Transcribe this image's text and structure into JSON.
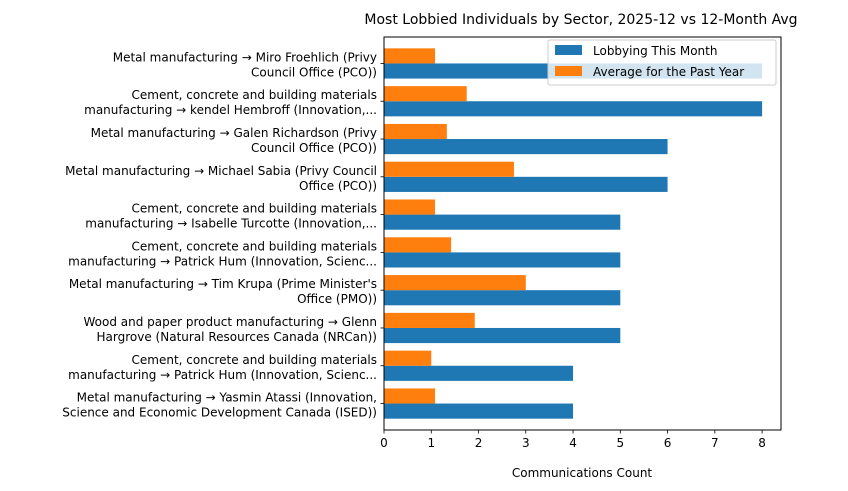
{
  "chart_data": {
    "type": "bar",
    "orientation": "horizontal",
    "title": "Most Lobbied Individuals by Sector, 2025-12 vs 12-Month Avg",
    "xlabel": "Communications Count",
    "ylabel": "",
    "xlim": [
      0,
      8.4
    ],
    "xticks": [
      "0",
      "1",
      "2",
      "3",
      "4",
      "5",
      "6",
      "7",
      "8"
    ],
    "grid": false,
    "legend_position": "top-right",
    "categories": [
      [
        "Metal manufacturing → Miro Froehlich (Privy",
        "Council Office (PCO))"
      ],
      [
        "Cement, concrete and building materials",
        "manufacturing → kendel  Hembroff (Innovation,..."
      ],
      [
        "Metal manufacturing → Galen Richardson (Privy",
        "Council Office (PCO))"
      ],
      [
        "Metal manufacturing → Michael Sabia (Privy Council",
        "Office (PCO))"
      ],
      [
        "Cement, concrete and building materials",
        "manufacturing → Isabelle Turcotte (Innovation,..."
      ],
      [
        "Cement, concrete and building materials",
        "manufacturing → Patrick Hum (Innovation, Scienc..."
      ],
      [
        "Metal manufacturing → Tim Krupa (Prime Minister's",
        "Office (PMO))"
      ],
      [
        "Wood and paper product manufacturing → Glenn",
        "Hargrove (Natural Resources Canada (NRCan))"
      ],
      [
        "Cement, concrete and building materials",
        "manufacturing → Patrick Hum (Innovation, Scienc..."
      ],
      [
        "Metal manufacturing → Yasmin Atassi (Innovation,",
        "Science and Economic Development Canada (ISED))"
      ]
    ],
    "series": [
      {
        "name": "Lobbying This Month",
        "color": "#1f77b4",
        "values": [
          8,
          8,
          6,
          6,
          5,
          5,
          5,
          5,
          4,
          4
        ]
      },
      {
        "name": "Average for the Past Year",
        "color": "#ff7f0e",
        "values": [
          1.08,
          1.75,
          1.33,
          2.75,
          1.08,
          1.42,
          3.0,
          1.92,
          1.0,
          1.08
        ]
      }
    ]
  }
}
